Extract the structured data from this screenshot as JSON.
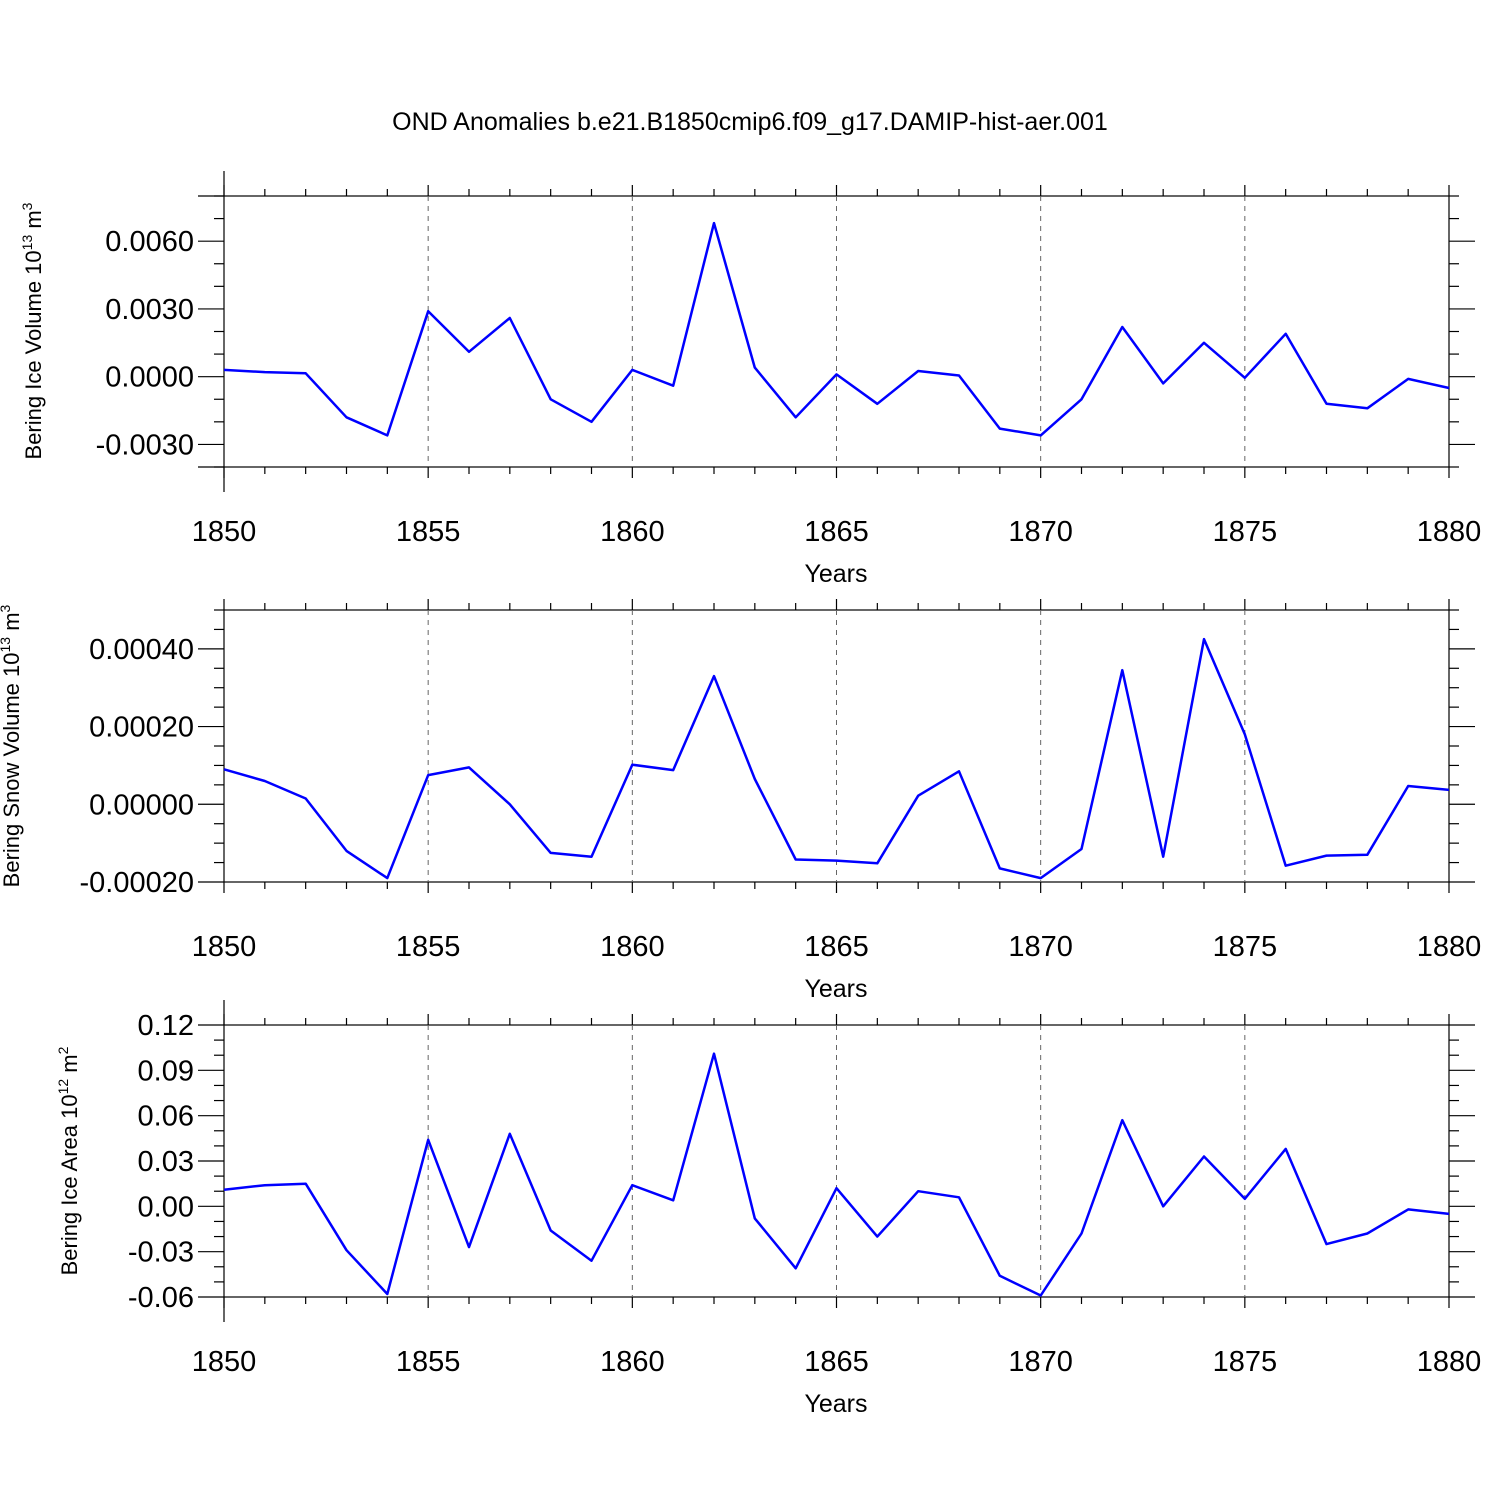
{
  "title": "OND Anomalies b.e21.B1850cmip6.f09_g17.DAMIP-hist-aer.001",
  "line_color": "#0000ff",
  "chart_data": [
    {
      "type": "line",
      "ylabel": "Bering Ice Volume 10",
      "ylabel_exp": "13",
      "ylabel_unit": "m",
      "ylabel_unit_exp": "3",
      "xlabel": "Years",
      "x": [
        1850,
        1851,
        1852,
        1853,
        1854,
        1855,
        1856,
        1857,
        1858,
        1859,
        1860,
        1861,
        1862,
        1863,
        1864,
        1865,
        1866,
        1867,
        1868,
        1869,
        1870,
        1871,
        1872,
        1873,
        1874,
        1875,
        1876,
        1877,
        1878,
        1879,
        1880
      ],
      "values": [
        0.0003,
        0.0002,
        0.00015,
        -0.0018,
        -0.0026,
        0.0029,
        0.0011,
        0.0026,
        -0.001,
        -0.002,
        0.0003,
        -0.0004,
        0.0068,
        0.0004,
        -0.0018,
        0.0001,
        -0.0012,
        0.00025,
        5e-05,
        -0.0023,
        -0.0026,
        -0.001,
        0.0022,
        -0.0003,
        0.0015,
        -5e-05,
        0.0019,
        -0.0012,
        -0.0014,
        -0.0001,
        -0.0005
      ],
      "xlim": [
        1850,
        1880
      ],
      "ylim": [
        -0.004,
        0.008
      ],
      "x_ticks": [
        "1850",
        "1855",
        "1860",
        "1865",
        "1870",
        "1875",
        "1880"
      ],
      "y_ticks": [
        "0.0060",
        "0.0030",
        "0.0000",
        "-0.0030"
      ],
      "y_tick_values": [
        0.006,
        0.003,
        0.0,
        -0.003
      ],
      "y_minor_step": 0.001,
      "grid": "dashed vertical lines at every 5 years"
    },
    {
      "type": "line",
      "ylabel": "Bering Snow Volume 10",
      "ylabel_exp": "13",
      "ylabel_unit": "m",
      "ylabel_unit_exp": "3",
      "xlabel": "Years",
      "x": [
        1850,
        1851,
        1852,
        1853,
        1854,
        1855,
        1856,
        1857,
        1858,
        1859,
        1860,
        1861,
        1862,
        1863,
        1864,
        1865,
        1866,
        1867,
        1868,
        1869,
        1870,
        1871,
        1872,
        1873,
        1874,
        1875,
        1876,
        1877,
        1878,
        1879,
        1880
      ],
      "values": [
        9e-05,
        6e-05,
        1.5e-05,
        -0.00012,
        -0.00019,
        7.5e-05,
        9.5e-05,
        0.0,
        -0.000125,
        -0.000135,
        0.000102,
        8.8e-05,
        0.00033,
        6.5e-05,
        -0.000142,
        -0.000145,
        -0.000152,
        2.2e-05,
        8.5e-05,
        -0.000165,
        -0.00019,
        -0.000115,
        0.000345,
        -0.000135,
        0.000425,
        0.00018,
        -0.000158,
        -0.000132,
        -0.00013,
        4.7e-05,
        3.7e-05
      ],
      "xlim": [
        1850,
        1880
      ],
      "ylim": [
        -0.0002,
        0.0005
      ],
      "x_ticks": [
        "1850",
        "1855",
        "1860",
        "1865",
        "1870",
        "1875",
        "1880"
      ],
      "y_ticks": [
        "0.00040",
        "0.00020",
        "0.00000",
        "-0.00020"
      ],
      "y_tick_values": [
        0.0004,
        0.0002,
        0.0,
        -0.0002
      ],
      "y_minor_step": 5e-05,
      "grid": "dashed vertical lines at every 5 years"
    },
    {
      "type": "line",
      "ylabel": "Bering Ice Area 10",
      "ylabel_exp": "12",
      "ylabel_unit": "m",
      "ylabel_unit_exp": "2",
      "xlabel": "Years",
      "x": [
        1850,
        1851,
        1852,
        1853,
        1854,
        1855,
        1856,
        1857,
        1858,
        1859,
        1860,
        1861,
        1862,
        1863,
        1864,
        1865,
        1866,
        1867,
        1868,
        1869,
        1870,
        1871,
        1872,
        1873,
        1874,
        1875,
        1876,
        1877,
        1878,
        1879,
        1880
      ],
      "values": [
        0.011,
        0.014,
        0.015,
        -0.029,
        -0.058,
        0.044,
        -0.027,
        0.048,
        -0.016,
        -0.036,
        0.014,
        0.004,
        0.101,
        -0.008,
        -0.041,
        0.012,
        -0.02,
        0.01,
        0.006,
        -0.046,
        -0.059,
        -0.018,
        0.057,
        0.0,
        0.033,
        0.005,
        0.038,
        -0.025,
        -0.018,
        -0.002,
        -0.005
      ],
      "xlim": [
        1850,
        1880
      ],
      "ylim": [
        -0.06,
        0.12
      ],
      "x_ticks": [
        "1850",
        "1855",
        "1860",
        "1865",
        "1870",
        "1875",
        "1880"
      ],
      "y_ticks": [
        "0.12",
        "0.09",
        "0.06",
        "0.03",
        "0.00",
        "-0.03",
        "-0.06"
      ],
      "y_tick_values": [
        0.12,
        0.09,
        0.06,
        0.03,
        0.0,
        -0.03,
        -0.06
      ],
      "y_minor_step": 0.01,
      "grid": "dashed vertical lines at every 5 years"
    }
  ]
}
